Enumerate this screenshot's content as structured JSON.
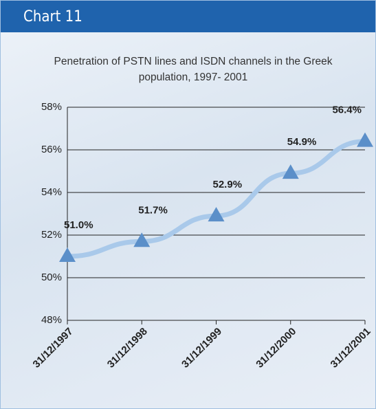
{
  "header": "Chart 11",
  "chart_data": {
    "type": "line",
    "title": "Penetration of PSTN lines and ISDN channels in the Greek population, 1997- 2001",
    "categories": [
      "31/12/1997",
      "31/12/1998",
      "31/12/1999",
      "31/12/2000",
      "31/12/2001"
    ],
    "values": [
      51.0,
      51.7,
      52.9,
      54.9,
      56.4
    ],
    "value_labels": [
      "51.0%",
      "51.7%",
      "52.9%",
      "54.9%",
      "56.4%"
    ],
    "color": "#a9c9ea",
    "marker_color": "#5b8fc9",
    "ylim": [
      48,
      58
    ],
    "yticks": [
      {
        "value": 48,
        "label": "48%"
      },
      {
        "value": 50,
        "label": "50%"
      },
      {
        "value": 52,
        "label": "52%"
      },
      {
        "value": 54,
        "label": "54%"
      },
      {
        "value": 56,
        "label": "56%"
      },
      {
        "value": 58,
        "label": "58%"
      }
    ],
    "grid": true
  }
}
